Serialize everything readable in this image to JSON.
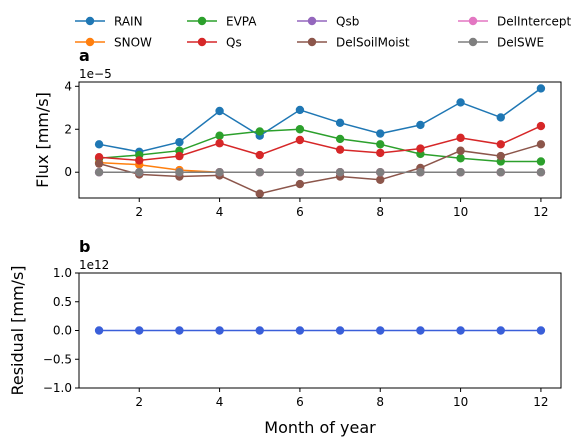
{
  "chart_data": [
    {
      "type": "line",
      "panel_label": "a",
      "ylabel": "Flux [mm/s]",
      "xlabel": "",
      "y_scale_label": "1e−5",
      "xlim": [
        0.5,
        12.5
      ],
      "ylim": [
        -1.2,
        4.2
      ],
      "xticks": [
        2,
        4,
        6,
        8,
        10,
        12
      ],
      "yticks": [
        0,
        2,
        4
      ],
      "x": [
        1,
        2,
        3,
        4,
        5,
        6,
        7,
        8,
        9,
        10,
        11,
        12
      ],
      "legend_placement": "top, above plots, 4 columns",
      "series": [
        {
          "name": "RAIN",
          "color": "#1f77b4",
          "values": [
            1.3,
            0.95,
            1.4,
            2.85,
            1.7,
            2.9,
            2.3,
            1.8,
            2.2,
            3.25,
            2.55,
            3.9
          ]
        },
        {
          "name": "SNOW",
          "color": "#ff7f0e",
          "values": [
            0.45,
            0.35,
            0.1,
            0.0,
            0.0,
            0.0,
            0.0,
            0.0,
            0.0,
            0.0,
            0.0,
            0.0
          ]
        },
        {
          "name": "EVPA",
          "color": "#2ca02c",
          "values": [
            0.65,
            0.8,
            1.0,
            1.7,
            1.9,
            2.0,
            1.55,
            1.3,
            0.85,
            0.65,
            0.5,
            0.5
          ]
        },
        {
          "name": "Qs",
          "color": "#d62728",
          "values": [
            0.7,
            0.55,
            0.75,
            1.35,
            0.8,
            1.5,
            1.05,
            0.9,
            1.1,
            1.6,
            1.3,
            2.15
          ]
        },
        {
          "name": "Qsb",
          "color": "#9467bd",
          "values": [
            0,
            0,
            0,
            0,
            0,
            0,
            0,
            0,
            0,
            0,
            0,
            0
          ]
        },
        {
          "name": "DelSoilMoist",
          "color": "#8c564b",
          "values": [
            0.4,
            -0.1,
            -0.2,
            -0.15,
            -1.0,
            -0.55,
            -0.2,
            -0.35,
            0.2,
            1.0,
            0.75,
            1.3
          ]
        },
        {
          "name": "DelIntercept",
          "color": "#e377c2",
          "values": [
            0,
            0,
            0,
            0,
            0,
            0,
            0,
            0,
            0,
            0,
            0,
            0
          ]
        },
        {
          "name": "DelSWE",
          "color": "#7f7f7f",
          "values": [
            0,
            0,
            0,
            0,
            0,
            0,
            0,
            0,
            0,
            0,
            0,
            0
          ]
        }
      ]
    },
    {
      "type": "line",
      "panel_label": "b",
      "ylabel": "Residual [mm/s]",
      "xlabel": "Month of year",
      "y_scale_label": "1e12",
      "xlim": [
        0.5,
        12.5
      ],
      "ylim": [
        -1.0,
        1.0
      ],
      "xticks": [
        2,
        4,
        6,
        8,
        10,
        12
      ],
      "yticks": [
        -1.0,
        -0.5,
        0.0,
        0.5,
        1.0
      ],
      "ytick_labels": [
        "−1.0",
        "−0.5",
        "0.0",
        "0.5",
        "1.0"
      ],
      "x": [
        1,
        2,
        3,
        4,
        5,
        6,
        7,
        8,
        9,
        10,
        11,
        12
      ],
      "series": [
        {
          "name": "",
          "color": "#3a5fd9",
          "values": [
            0,
            0,
            0,
            0,
            0,
            0,
            0,
            0,
            0,
            0,
            0,
            0
          ]
        }
      ]
    }
  ]
}
